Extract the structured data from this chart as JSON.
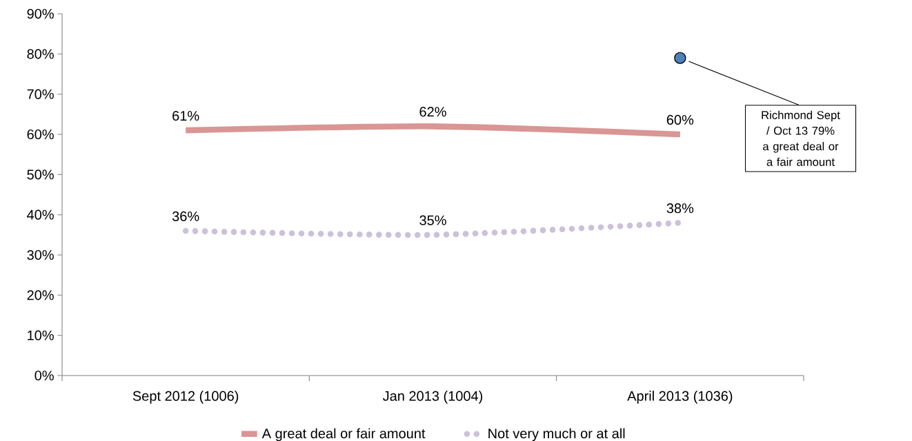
{
  "chart_data": {
    "type": "line",
    "categories": [
      "Sept 2012 (1006)",
      "Jan 2013 (1004)",
      "April 2013 (1036)"
    ],
    "series": [
      {
        "name": "A great deal or fair amount",
        "color": "#d99694",
        "values": [
          61,
          62,
          60
        ],
        "value_labels": [
          "61%",
          "62%",
          "60%"
        ]
      },
      {
        "name": "Not very much or at all",
        "color": "#ccc1da",
        "values": [
          36,
          35,
          38
        ],
        "value_labels": [
          "36%",
          "35%",
          "38%"
        ],
        "line_style": "dotted"
      },
      {
        "type": "scatter",
        "color": "#4f81bd",
        "values": [
          null,
          null,
          79
        ],
        "marker": "circle"
      }
    ],
    "annotations": [
      "Richmond Sept / Oct 13 79% a great deal or a fair amount"
    ],
    "ylim": [
      0,
      90
    ],
    "yticks": [
      {
        "value": 0,
        "label": "0%"
      },
      {
        "value": 10,
        "label": "10%"
      },
      {
        "value": 20,
        "label": "20%"
      },
      {
        "value": 30,
        "label": "30%"
      },
      {
        "value": 40,
        "label": "40%"
      },
      {
        "value": 50,
        "label": "50%"
      },
      {
        "value": 60,
        "label": "60%"
      },
      {
        "value": 70,
        "label": "70%"
      },
      {
        "value": 80,
        "label": "80%"
      },
      {
        "value": 90,
        "label": "90%"
      }
    ],
    "grid": false,
    "legend": "bottom"
  }
}
